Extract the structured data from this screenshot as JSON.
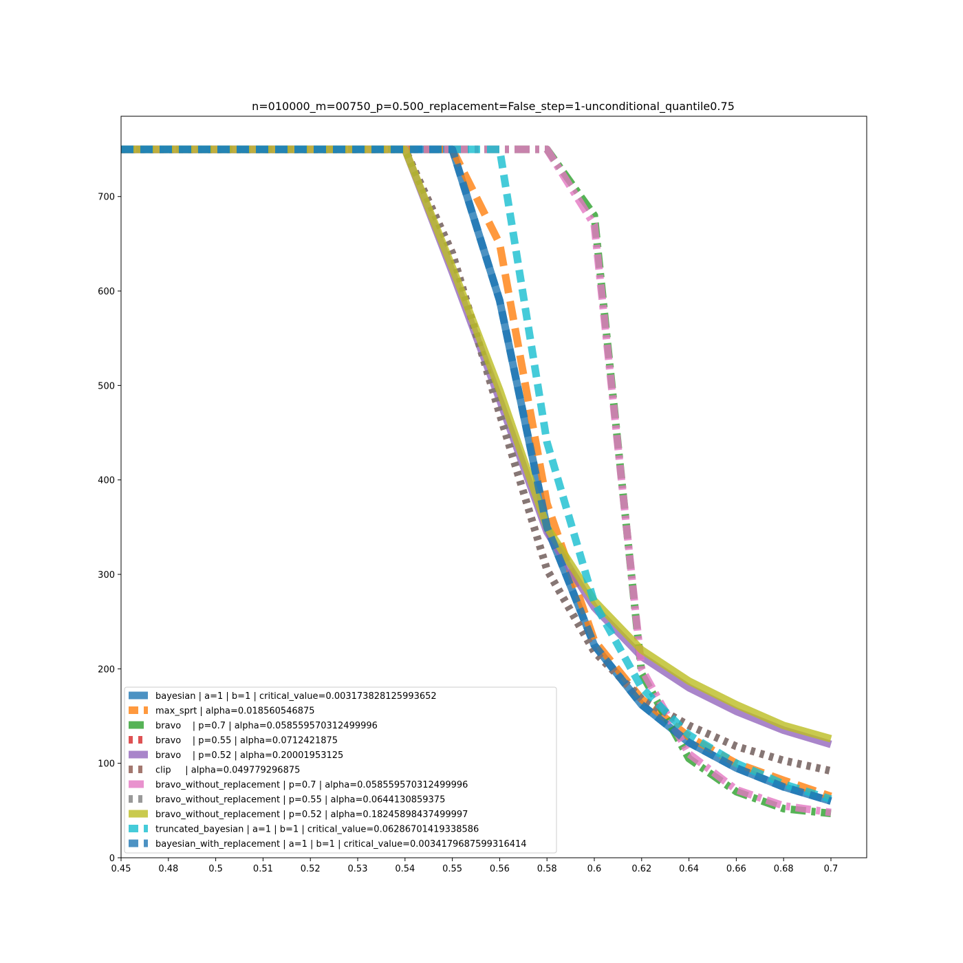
{
  "chart_data": {
    "type": "line",
    "title": "n=010000_m=00750_p=0.500_replacement=False_step=1-unconditional_quantile0.75",
    "xlabel": "",
    "ylabel": "",
    "x": [
      "0.45",
      "0.48",
      "0.5",
      "0.51",
      "0.52",
      "0.53",
      "0.54",
      "0.55",
      "0.56",
      "0.58",
      "0.6",
      "0.62",
      "0.64",
      "0.66",
      "0.68",
      "0.7"
    ],
    "ylim": [
      0,
      785
    ],
    "yticks": [
      0,
      100,
      200,
      300,
      400,
      500,
      600,
      700
    ],
    "grid": false,
    "legend_position": "lower-left",
    "series": [
      {
        "name": "bayesian | a=1 | b=1 | critical_value=0.003173828125993652",
        "color": "#1f77b4",
        "dash": "solid",
        "width": 11,
        "values": [
          750,
          750,
          750,
          750,
          750,
          750,
          750,
          750,
          590,
          350,
          225,
          162,
          122,
          95,
          75,
          60
        ]
      },
      {
        "name": "max_sprt | alpha=0.018560546875",
        "color": "#ff7f0e",
        "dash": "long",
        "width": 11,
        "values": [
          750,
          750,
          750,
          750,
          750,
          750,
          750,
          750,
          650,
          375,
          230,
          168,
          128,
          100,
          82,
          65
        ]
      },
      {
        "name": "bravo    | p=0.7 | alpha=0.058559570312499996",
        "color": "#2ca02c",
        "dash": "dashdot",
        "width": 11,
        "values": [
          750,
          750,
          750,
          750,
          750,
          750,
          750,
          750,
          750,
          750,
          680,
          195,
          105,
          70,
          52,
          47
        ]
      },
      {
        "name": "bravo    | p=0.55 | alpha=0.0712421875",
        "color": "#d62728",
        "dash": "dotted",
        "width": 11,
        "values": [
          750,
          750,
          750,
          750,
          750,
          750,
          750,
          640,
          470,
          305,
          218,
          168,
          140,
          118,
          103,
          92
        ]
      },
      {
        "name": "bravo    | p=0.52 | alpha=0.20001953125",
        "color": "#9467bd",
        "dash": "solid",
        "width": 11,
        "values": [
          750,
          750,
          750,
          750,
          750,
          750,
          750,
          620,
          485,
          345,
          265,
          213,
          180,
          155,
          135,
          120
        ]
      },
      {
        "name": "clip     | alpha=0.049779296875",
        "color": "#8c564b",
        "dash": "dotted",
        "width": 11,
        "values": [
          750,
          750,
          750,
          750,
          750,
          750,
          750,
          640,
          470,
          305,
          218,
          168,
          140,
          118,
          103,
          92
        ]
      },
      {
        "name": "bravo_without_replacement | p=0.7 | alpha=0.058559570312499996",
        "color": "#e377c2",
        "dash": "dashdot",
        "width": 11,
        "values": [
          750,
          750,
          750,
          750,
          750,
          750,
          750,
          750,
          750,
          750,
          670,
          200,
          110,
          72,
          55,
          48
        ]
      },
      {
        "name": "bravo_without_replacement | p=0.55 | alpha=0.0644130859375",
        "color": "#7f7f7f",
        "dash": "dotted",
        "width": 11,
        "values": [
          750,
          750,
          750,
          750,
          750,
          750,
          750,
          640,
          470,
          305,
          218,
          168,
          140,
          118,
          103,
          92
        ]
      },
      {
        "name": "bravo_without_replacement | p=0.52 | alpha=0.18245898437499997",
        "color": "#bcbd22",
        "dash": "solid",
        "width": 11,
        "values": [
          750,
          750,
          750,
          750,
          750,
          750,
          750,
          625,
          495,
          350,
          272,
          220,
          187,
          162,
          140,
          126
        ]
      },
      {
        "name": "truncated_bayesian | a=1 | b=1 | critical_value=0.06286701419338586",
        "color": "#17becf",
        "dash": "dashed",
        "width": 11,
        "values": [
          750,
          750,
          750,
          750,
          750,
          750,
          750,
          750,
          750,
          440,
          270,
          180,
          130,
          100,
          78,
          62
        ]
      },
      {
        "name": "bayesian_with_replacement | a=1 | b=1 | critical_value=0.0034179687599316414",
        "color": "#1f77b4",
        "dash": "dashed",
        "width": 11,
        "values": [
          750,
          750,
          750,
          750,
          750,
          750,
          750,
          750,
          590,
          350,
          225,
          162,
          122,
          95,
          75,
          60
        ]
      }
    ]
  }
}
